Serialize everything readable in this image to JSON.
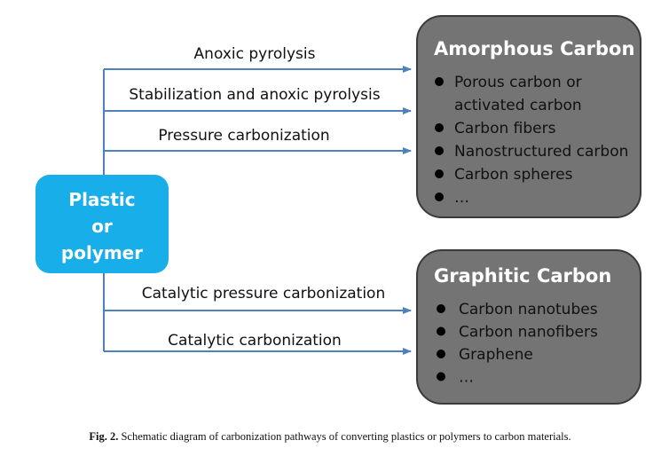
{
  "source": {
    "lines": [
      "Plastic",
      "or",
      "polymer"
    ]
  },
  "edges": [
    {
      "label": "Anoxic pyrolysis"
    },
    {
      "label": "Stabilization and anoxic pyrolysis"
    },
    {
      "label": "Pressure carbonization"
    },
    {
      "label": "Catalytic pressure carbonization"
    },
    {
      "label": "Catalytic carbonization"
    }
  ],
  "targets": [
    {
      "title": "Amorphous Carbon",
      "items": [
        [
          "Porous carbon or",
          "activated carbon"
        ],
        [
          "Carbon fibers"
        ],
        [
          "Nanostructured carbon"
        ],
        [
          "Carbon spheres"
        ],
        [
          "…"
        ]
      ]
    },
    {
      "title": "Graphitic Carbon",
      "items": [
        [
          "Carbon nanotubes"
        ],
        [
          "Carbon nanofibers"
        ],
        [
          "Graphene"
        ],
        [
          "…"
        ]
      ]
    }
  ],
  "caption": {
    "label": "Fig. 2.",
    "text": "Schematic diagram of carbonization pathways of converting plastics or polymers to carbon materials."
  }
}
